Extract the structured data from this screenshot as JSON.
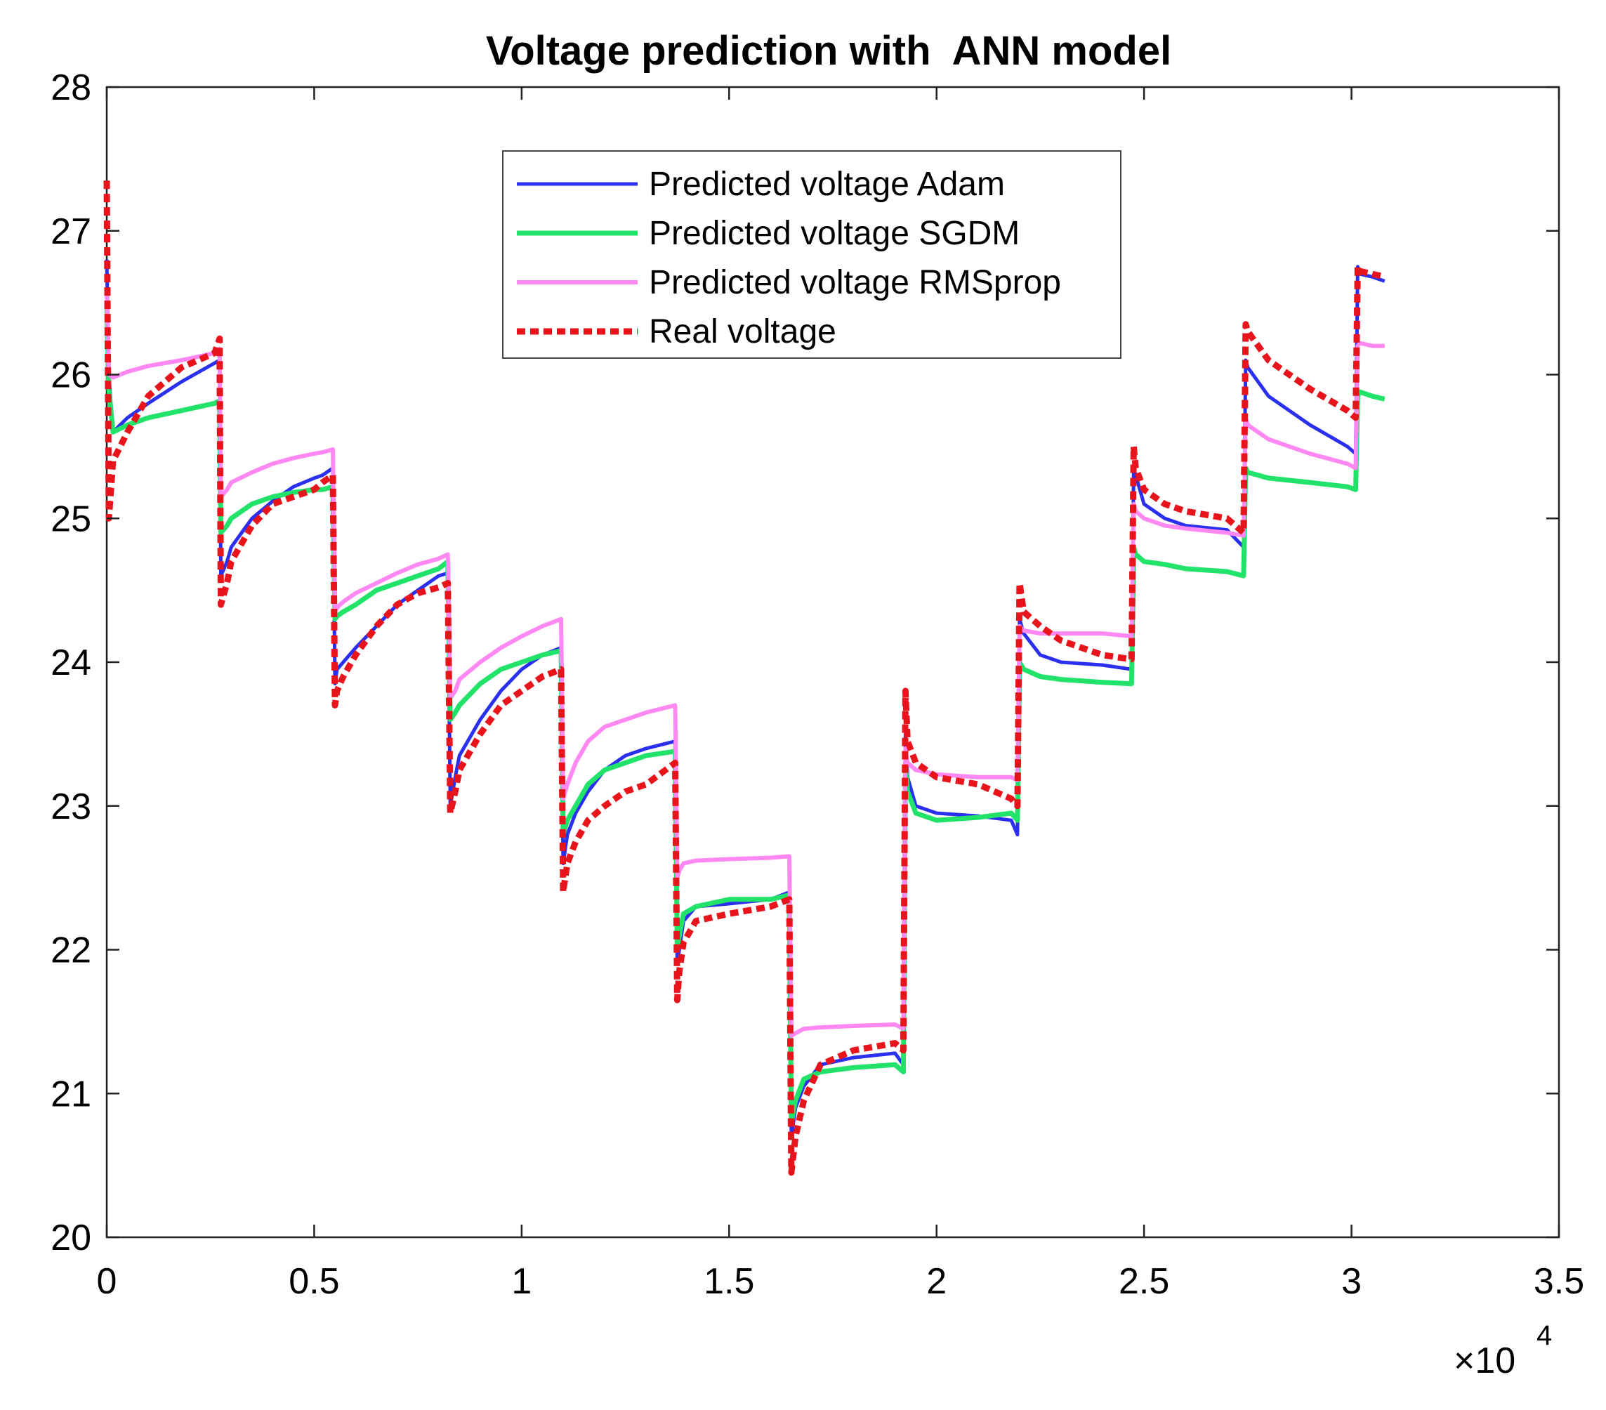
{
  "chart_data": {
    "type": "line",
    "title": "Voltage prediction with  ANN model",
    "xlabel": "",
    "ylabel": "",
    "x_multiplier_label": "×10",
    "x_multiplier_exponent": "4",
    "xlim": [
      0,
      3.5
    ],
    "ylim": [
      20,
      28
    ],
    "xticks": [
      0,
      0.5,
      1,
      1.5,
      2,
      2.5,
      3,
      3.5
    ],
    "xtick_labels": [
      "0",
      "0.5",
      "1",
      "1.5",
      "2",
      "2.5",
      "3",
      "3.5"
    ],
    "yticks": [
      20,
      21,
      22,
      23,
      24,
      25,
      26,
      27,
      28
    ],
    "ytick_labels": [
      "20",
      "21",
      "22",
      "23",
      "24",
      "25",
      "26",
      "27",
      "28"
    ],
    "grid": false,
    "legend_position": "top-center",
    "series": [
      {
        "name": "Predicted voltage Adam",
        "color": "#2a2ff0",
        "style": "solid",
        "x": [
          0,
          0.005,
          0.015,
          0.05,
          0.1,
          0.18,
          0.26,
          0.272,
          0.275,
          0.29,
          0.3,
          0.35,
          0.4,
          0.45,
          0.5,
          0.52,
          0.545,
          0.55,
          0.555,
          0.57,
          0.6,
          0.65,
          0.7,
          0.75,
          0.8,
          0.822,
          0.828,
          0.84,
          0.85,
          0.9,
          0.95,
          1.0,
          1.05,
          1.095,
          1.1,
          1.11,
          1.13,
          1.16,
          1.2,
          1.25,
          1.3,
          1.37,
          1.375,
          1.38,
          1.39,
          1.42,
          1.5,
          1.6,
          1.645,
          1.65,
          1.66,
          1.68,
          1.72,
          1.8,
          1.9,
          1.92,
          1.925,
          1.93,
          1.95,
          2.0,
          2.1,
          2.18,
          2.195,
          2.2,
          2.21,
          2.25,
          2.3,
          2.4,
          2.47,
          2.475,
          2.48,
          2.5,
          2.55,
          2.6,
          2.7,
          2.74,
          2.745,
          2.75,
          2.8,
          2.9,
          2.99,
          3.01,
          3.015,
          3.02,
          3.05,
          3.08
        ],
        "y": [
          26.8,
          26.0,
          25.6,
          25.7,
          25.8,
          25.95,
          26.08,
          26.1,
          24.6,
          24.7,
          24.8,
          25.0,
          25.12,
          25.22,
          25.28,
          25.3,
          25.35,
          23.85,
          23.95,
          24.0,
          24.1,
          24.25,
          24.4,
          24.5,
          24.6,
          24.62,
          23.0,
          23.2,
          23.35,
          23.6,
          23.8,
          23.95,
          24.05,
          24.1,
          22.6,
          22.8,
          22.95,
          23.1,
          23.25,
          23.35,
          23.4,
          23.45,
          21.9,
          22.0,
          22.2,
          22.3,
          22.32,
          22.35,
          22.4,
          20.7,
          20.9,
          21.05,
          21.2,
          21.25,
          21.28,
          21.2,
          23.5,
          23.2,
          23.0,
          22.95,
          22.93,
          22.9,
          22.8,
          24.3,
          24.2,
          24.05,
          24.0,
          23.98,
          23.95,
          25.35,
          25.3,
          25.1,
          25.0,
          24.95,
          24.92,
          24.8,
          26.1,
          26.05,
          25.85,
          25.65,
          25.5,
          25.45,
          26.75,
          26.7,
          26.68,
          26.65
        ]
      },
      {
        "name": "Predicted voltage  SGDM",
        "color": "#22e36a",
        "style": "solid",
        "x": [
          0,
          0.005,
          0.015,
          0.05,
          0.1,
          0.18,
          0.26,
          0.272,
          0.275,
          0.29,
          0.3,
          0.35,
          0.4,
          0.45,
          0.5,
          0.52,
          0.545,
          0.55,
          0.555,
          0.57,
          0.6,
          0.65,
          0.7,
          0.75,
          0.8,
          0.822,
          0.828,
          0.84,
          0.85,
          0.9,
          0.95,
          1.0,
          1.05,
          1.095,
          1.1,
          1.11,
          1.13,
          1.16,
          1.2,
          1.25,
          1.3,
          1.37,
          1.375,
          1.38,
          1.39,
          1.42,
          1.5,
          1.6,
          1.645,
          1.65,
          1.66,
          1.68,
          1.72,
          1.8,
          1.9,
          1.92,
          1.925,
          1.93,
          1.95,
          2.0,
          2.1,
          2.18,
          2.195,
          2.2,
          2.21,
          2.25,
          2.3,
          2.4,
          2.47,
          2.475,
          2.48,
          2.5,
          2.55,
          2.6,
          2.7,
          2.74,
          2.745,
          2.75,
          2.8,
          2.9,
          2.99,
          3.01,
          3.015,
          3.02,
          3.05,
          3.08
        ],
        "y": [
          26.5,
          25.9,
          25.6,
          25.65,
          25.7,
          25.75,
          25.8,
          25.82,
          24.9,
          24.95,
          25.0,
          25.1,
          25.15,
          25.18,
          25.2,
          25.2,
          25.22,
          24.3,
          24.32,
          24.35,
          24.4,
          24.5,
          24.55,
          24.6,
          24.65,
          24.7,
          23.6,
          23.65,
          23.7,
          23.85,
          23.95,
          24.0,
          24.05,
          24.08,
          22.8,
          22.9,
          23.0,
          23.15,
          23.25,
          23.3,
          23.35,
          23.38,
          22.0,
          22.1,
          22.25,
          22.3,
          22.35,
          22.35,
          22.38,
          20.8,
          20.95,
          21.1,
          21.15,
          21.18,
          21.2,
          21.15,
          23.3,
          23.1,
          22.95,
          22.9,
          22.92,
          22.95,
          22.9,
          24.0,
          23.95,
          23.9,
          23.88,
          23.86,
          23.85,
          24.8,
          24.75,
          24.7,
          24.68,
          24.65,
          24.63,
          24.6,
          25.35,
          25.32,
          25.28,
          25.25,
          25.22,
          25.2,
          25.85,
          25.88,
          25.85,
          25.83
        ]
      },
      {
        "name": "Predicted voltage RMSprop",
        "color": "#ff88f2",
        "style": "solid",
        "x": [
          0,
          0.005,
          0.015,
          0.05,
          0.1,
          0.18,
          0.26,
          0.272,
          0.275,
          0.29,
          0.3,
          0.35,
          0.4,
          0.45,
          0.5,
          0.52,
          0.545,
          0.55,
          0.555,
          0.57,
          0.6,
          0.65,
          0.7,
          0.75,
          0.8,
          0.822,
          0.828,
          0.84,
          0.85,
          0.9,
          0.95,
          1.0,
          1.05,
          1.095,
          1.1,
          1.11,
          1.13,
          1.16,
          1.2,
          1.25,
          1.3,
          1.37,
          1.375,
          1.38,
          1.39,
          1.42,
          1.5,
          1.6,
          1.645,
          1.65,
          1.66,
          1.68,
          1.72,
          1.8,
          1.9,
          1.92,
          1.925,
          1.93,
          1.95,
          2.0,
          2.1,
          2.18,
          2.195,
          2.2,
          2.21,
          2.25,
          2.3,
          2.4,
          2.47,
          2.475,
          2.48,
          2.5,
          2.55,
          2.6,
          2.7,
          2.74,
          2.745,
          2.75,
          2.8,
          2.9,
          2.99,
          3.01,
          3.015,
          3.02,
          3.05,
          3.08
        ],
        "y": [
          26.6,
          26.0,
          25.98,
          26.02,
          26.06,
          26.1,
          26.15,
          26.18,
          25.15,
          25.2,
          25.25,
          25.32,
          25.38,
          25.42,
          25.45,
          25.46,
          25.48,
          24.35,
          24.38,
          24.42,
          24.48,
          24.55,
          24.62,
          24.68,
          24.72,
          24.75,
          23.75,
          23.8,
          23.88,
          24.0,
          24.1,
          24.18,
          24.25,
          24.3,
          23.05,
          23.15,
          23.3,
          23.45,
          23.55,
          23.6,
          23.65,
          23.7,
          22.5,
          22.55,
          22.6,
          22.62,
          22.63,
          22.64,
          22.65,
          21.4,
          21.42,
          21.45,
          21.46,
          21.47,
          21.48,
          21.45,
          23.4,
          23.3,
          23.25,
          23.22,
          23.2,
          23.2,
          23.18,
          24.25,
          24.22,
          24.2,
          24.2,
          24.2,
          24.18,
          25.1,
          25.05,
          25.0,
          24.95,
          24.93,
          24.9,
          24.88,
          25.7,
          25.65,
          25.55,
          25.45,
          25.38,
          25.35,
          26.2,
          26.22,
          26.2,
          26.2
        ]
      },
      {
        "name": "Real voltage",
        "color": "#e8141c",
        "style": "dotted",
        "x": [
          0,
          0.005,
          0.015,
          0.05,
          0.1,
          0.18,
          0.26,
          0.272,
          0.275,
          0.29,
          0.3,
          0.35,
          0.4,
          0.45,
          0.5,
          0.52,
          0.545,
          0.55,
          0.555,
          0.57,
          0.6,
          0.65,
          0.7,
          0.75,
          0.8,
          0.822,
          0.828,
          0.84,
          0.85,
          0.9,
          0.95,
          1.0,
          1.05,
          1.095,
          1.1,
          1.11,
          1.13,
          1.16,
          1.2,
          1.25,
          1.3,
          1.37,
          1.375,
          1.38,
          1.39,
          1.42,
          1.5,
          1.6,
          1.645,
          1.65,
          1.66,
          1.68,
          1.72,
          1.8,
          1.9,
          1.92,
          1.925,
          1.93,
          1.95,
          2.0,
          2.1,
          2.18,
          2.195,
          2.2,
          2.21,
          2.25,
          2.3,
          2.4,
          2.47,
          2.475,
          2.48,
          2.5,
          2.55,
          2.6,
          2.7,
          2.74,
          2.745,
          2.75,
          2.8,
          2.9,
          2.99,
          3.01,
          3.015,
          3.02,
          3.05,
          3.08
        ],
        "y": [
          27.35,
          25.0,
          25.4,
          25.6,
          25.85,
          26.05,
          26.15,
          26.25,
          24.4,
          24.55,
          24.7,
          24.95,
          25.1,
          25.15,
          25.2,
          25.25,
          25.3,
          23.7,
          23.8,
          23.9,
          24.05,
          24.25,
          24.4,
          24.48,
          24.52,
          24.55,
          22.95,
          23.1,
          23.25,
          23.5,
          23.7,
          23.8,
          23.9,
          23.95,
          22.4,
          22.6,
          22.75,
          22.9,
          23.0,
          23.1,
          23.15,
          23.3,
          21.65,
          21.85,
          22.05,
          22.2,
          22.25,
          22.3,
          22.35,
          20.45,
          20.7,
          20.95,
          21.2,
          21.3,
          21.35,
          21.3,
          23.8,
          23.45,
          23.3,
          23.2,
          23.15,
          23.05,
          23.0,
          24.55,
          24.35,
          24.25,
          24.15,
          24.05,
          24.02,
          25.5,
          25.35,
          25.2,
          25.1,
          25.05,
          25.0,
          24.9,
          26.35,
          26.3,
          26.1,
          25.9,
          25.75,
          25.7,
          26.75,
          26.72,
          26.7,
          26.68
        ]
      }
    ]
  }
}
